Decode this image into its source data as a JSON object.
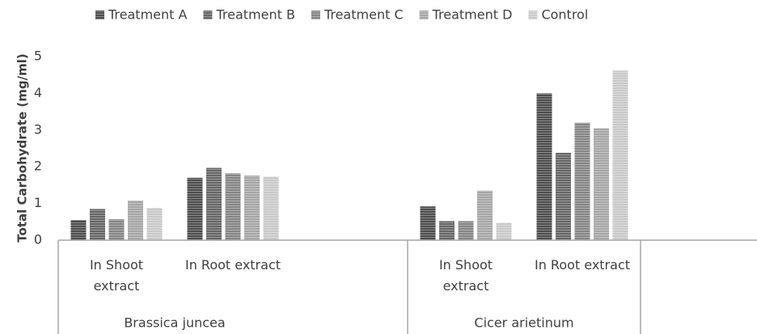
{
  "chart_data": {
    "type": "bar",
    "y_label": "Total Carbohydrate (mg/ml)",
    "groups": [
      {
        "name": "Brassica juncea",
        "categories": [
          "In Shoot extract",
          "In Root extract",
          null
        ]
      },
      {
        "name": "Cicer arietinum",
        "categories": [
          "In Shoot extract",
          "In Root extract",
          null
        ]
      }
    ],
    "series": [
      {
        "name": "Treatment A",
        "color": "#4d4d4d",
        "values": [
          0.55,
          1.7,
          null,
          0.92,
          4.0,
          null
        ]
      },
      {
        "name": "Treatment B",
        "color": "#666666",
        "values": [
          0.85,
          1.97,
          null,
          0.52,
          2.38,
          null
        ]
      },
      {
        "name": "Treatment C",
        "color": "#858585",
        "values": [
          0.57,
          1.82,
          null,
          0.52,
          3.2,
          null
        ]
      },
      {
        "name": "Treatment D",
        "color": "#a6a6a6",
        "values": [
          1.08,
          1.76,
          null,
          1.35,
          3.05,
          null
        ]
      },
      {
        "name": "Control",
        "color": "#c9c9c9",
        "values": [
          0.88,
          1.73,
          null,
          0.47,
          4.62,
          null
        ]
      }
    ],
    "ylim": [
      0,
      5
    ],
    "yticks": [
      0,
      1,
      2,
      3,
      4,
      5
    ],
    "grid": false,
    "legend": "top"
  }
}
